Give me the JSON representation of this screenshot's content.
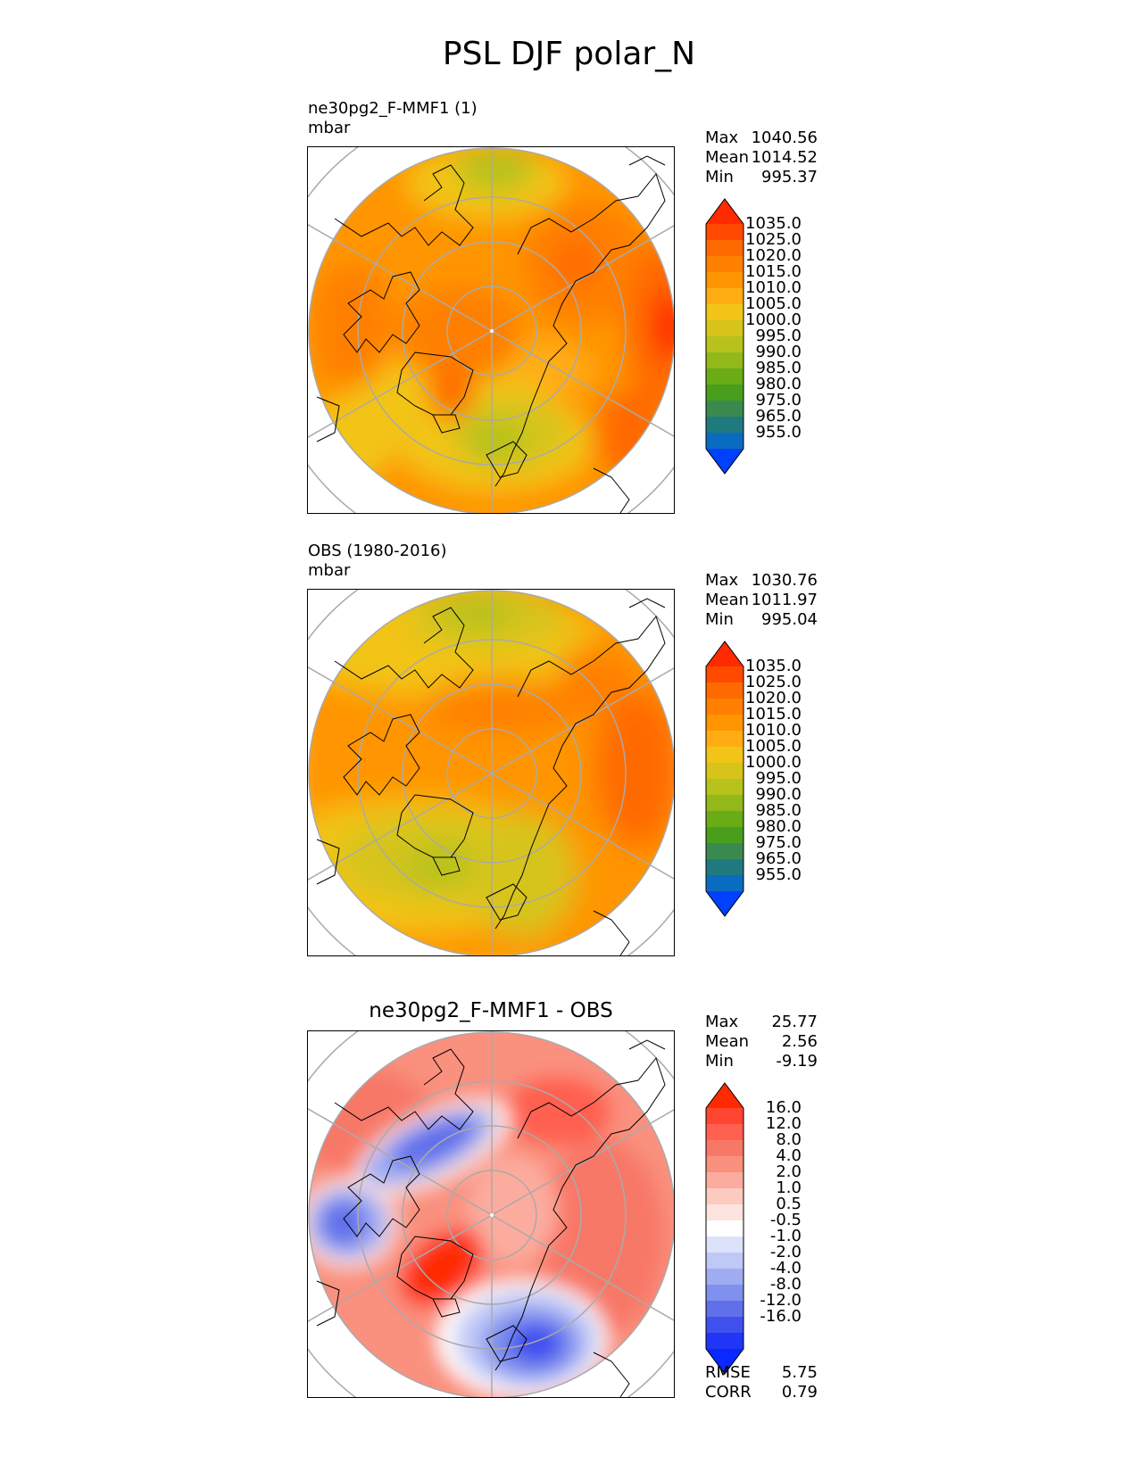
{
  "figure_title": "PSL DJF polar_N",
  "panels": {
    "model": {
      "name": "ne30pg2_F-MMF1 (1)",
      "units": "mbar",
      "stats": [
        {
          "label": "Max",
          "value": "1040.56"
        },
        {
          "label": "Mean",
          "value": "1014.52"
        },
        {
          "label": "Min",
          "value": "995.37"
        }
      ]
    },
    "obs": {
      "name": "OBS (1980-2016)",
      "units": "mbar",
      "stats": [
        {
          "label": "Max",
          "value": "1030.76"
        },
        {
          "label": "Mean",
          "value": "1011.97"
        },
        {
          "label": "Min",
          "value": "995.04"
        }
      ]
    },
    "diff": {
      "name": "ne30pg2_F-MMF1 - OBS",
      "stats": [
        {
          "label": "Max",
          "value": "25.77"
        },
        {
          "label": "Mean",
          "value": "2.56"
        },
        {
          "label": "Min",
          "value": "-9.19"
        }
      ],
      "metrics": [
        {
          "label": "RMSE",
          "value": "5.75"
        },
        {
          "label": "CORR",
          "value": "0.79"
        }
      ]
    }
  },
  "colorbars": {
    "abs": {
      "ticks": [
        "1035.0",
        "1025.0",
        "1020.0",
        "1015.0",
        "1010.0",
        "1005.0",
        "1000.0",
        "995.0",
        "990.0",
        "985.0",
        "980.0",
        "975.0",
        "965.0",
        "955.0"
      ],
      "colors": [
        "#ff2a00",
        "#ff4a00",
        "#ff6a00",
        "#ff8000",
        "#ff9500",
        "#ffad12",
        "#f2c418",
        "#d6c41a",
        "#b8c21c",
        "#92b81a",
        "#6aac16",
        "#4a9e1e",
        "#3a8a50",
        "#1f7a80",
        "#0a6cc0",
        "#0040ff"
      ]
    },
    "diff": {
      "ticks": [
        "16.0",
        "12.0",
        "8.0",
        "4.0",
        "2.0",
        "1.0",
        "0.5",
        "-0.5",
        "-1.0",
        "-2.0",
        "-4.0",
        "-8.0",
        "-12.0",
        "-16.0"
      ],
      "colors": [
        "#ff2a00",
        "#ff4530",
        "#ff6050",
        "#f87868",
        "#fa907e",
        "#fcac9e",
        "#fdcac0",
        "#fde4de",
        "#ffffff",
        "#dde2fb",
        "#c0c8f6",
        "#a0acf2",
        "#8090ee",
        "#6070ea",
        "#4050ee",
        "#2035f5",
        "#0a28ff"
      ]
    }
  },
  "chart_data": [
    {
      "type": "heatmap",
      "title": "ne30pg2_F-MMF1 (1)",
      "subtitle": "mbar",
      "projection": "north polar stereographic",
      "field": "PSL",
      "season": "DJF",
      "units": "mbar",
      "max": 1040.56,
      "mean": 1014.52,
      "min": 995.37,
      "contour_levels": [
        955,
        965,
        975,
        980,
        985,
        990,
        995,
        1000,
        1005,
        1010,
        1015,
        1020,
        1025,
        1035
      ],
      "grid": true
    },
    {
      "type": "heatmap",
      "title": "OBS (1980-2016)",
      "subtitle": "mbar",
      "projection": "north polar stereographic",
      "field": "PSL",
      "season": "DJF",
      "units": "mbar",
      "max": 1030.76,
      "mean": 1011.97,
      "min": 995.04,
      "contour_levels": [
        955,
        965,
        975,
        980,
        985,
        990,
        995,
        1000,
        1005,
        1010,
        1015,
        1020,
        1025,
        1035
      ],
      "grid": true
    },
    {
      "type": "heatmap",
      "title": "ne30pg2_F-MMF1 - OBS",
      "projection": "north polar stereographic",
      "field": "PSL",
      "season": "DJF",
      "max": 25.77,
      "mean": 2.56,
      "min": -9.19,
      "rmse": 5.75,
      "corr": 0.79,
      "contour_levels": [
        -16,
        -12,
        -8,
        -4,
        -2,
        -1,
        -0.5,
        0.5,
        1,
        2,
        4,
        8,
        12,
        16
      ],
      "grid": true
    }
  ]
}
